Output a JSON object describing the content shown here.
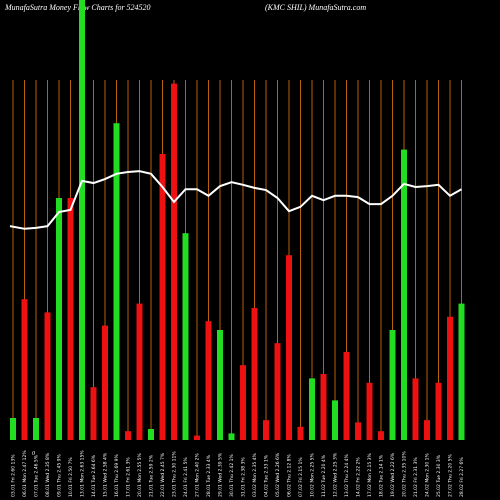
{
  "chart_data": {
    "type": "bar",
    "title": "MunafaSutra  Money Flow  Charts for 524520",
    "subtitle": "(KMC SHIL) MunafaSutra.com",
    "annotation": "0",
    "categories": [
      "03.01 Fri 2.60 13%",
      "06.01 Mon 2.47 12%",
      "07.01 Tue 2.46 5%",
      "08.01 Wed 2.35 8%",
      "09.01 Thu 2.45 9%",
      "10.01 Fri 2.50 7%",
      "13.01 Mon 2.63 15%",
      "14.01 Tue 2.64 6%",
      "15.01 Wed 2.58 4%",
      "16.01 Thu 2.69 9%",
      "17.01 Fri 2.61 3%",
      "20.01 Mon 2.55 5%",
      "21.01 Tue 2.59 2%",
      "22.01 Wed 2.45 7%",
      "23.01 Thu 2.30 11%",
      "24.01 Fri 2.41 5%",
      "27.01 Mon 2.40 2%",
      "28.01 Tue 2.33 4%",
      "29.01 Wed 2.39 5%",
      "30.01 Thu 2.42 1%",
      "31.01 Fri 2.38 3%",
      "03.02 Mon 2.35 4%",
      "04.02 Tue 2.33 1%",
      "05.02 Wed 2.26 6%",
      "06.02 Thu 2.12 8%",
      "07.02 Fri 2.15 1%",
      "10.02 Mon 2.25 5%",
      "11.02 Tue 2.20 4%",
      "12.02 Wed 2.25 3%",
      "13.02 Thu 2.24 4%",
      "14.02 Fri 2.22 2%",
      "17.02 Mon 2.15 3%",
      "18.02 Tue 2.14 1%",
      "19.02 Wed 2.22 6%",
      "20.02 Thu 2.35 10%",
      "21.02 Fri 2.31 3%",
      "24.02 Mon 2.30 1%",
      "25.02 Tue 2.30 3%",
      "27.02 Thu 2.20 5%",
      "28.02 Fri 2.27 6%"
    ],
    "values": [
      5,
      32,
      5,
      29,
      55,
      55,
      100,
      12,
      26,
      72,
      2,
      31,
      2.5,
      65,
      81,
      47,
      1,
      27,
      25,
      1.5,
      17,
      30,
      4.5,
      22,
      42,
      3,
      14,
      15,
      9,
      20,
      4,
      13,
      2,
      25,
      66,
      14,
      4.5,
      13,
      28,
      31
    ],
    "colors": [
      "#22dd22",
      "#ee1111",
      "#22dd22",
      "#ee1111",
      "#22dd22",
      "#ee1111",
      "#22dd22",
      "#ee1111",
      "#ee1111",
      "#22dd22",
      "#ee1111",
      "#ee1111",
      "#22dd22",
      "#ee1111",
      "#ee1111",
      "#22dd22",
      "#ee1111",
      "#ee1111",
      "#22dd22",
      "#22dd22",
      "#ee1111",
      "#ee1111",
      "#ee1111",
      "#ee1111",
      "#ee1111",
      "#ee1111",
      "#22dd22",
      "#ee1111",
      "#22dd22",
      "#ee1111",
      "#ee1111",
      "#ee1111",
      "#ee1111",
      "#22dd22",
      "#22dd22",
      "#ee1111",
      "#ee1111",
      "#ee1111",
      "#ee1111",
      "#22dd22"
    ],
    "line_values": [
      48.6,
      48.0,
      48.2,
      48.6,
      51.8,
      52.3,
      58.9,
      58.4,
      59.3,
      60.5,
      60.9,
      61.1,
      60.5,
      57.5,
      54.1,
      57.0,
      57.0,
      55.5,
      57.7,
      58.6,
      58.0,
      57.3,
      56.8,
      55.0,
      52.0,
      53.0,
      55.5,
      54.5,
      55.5,
      55.5,
      55.2,
      53.6,
      53.6,
      55.5,
      58.2,
      57.5,
      57.7,
      58.0,
      55.5,
      57.0
    ],
    "line_color": "#ffffff",
    "grid_color": "#b8610c",
    "ylim": [
      0,
      100
    ]
  }
}
